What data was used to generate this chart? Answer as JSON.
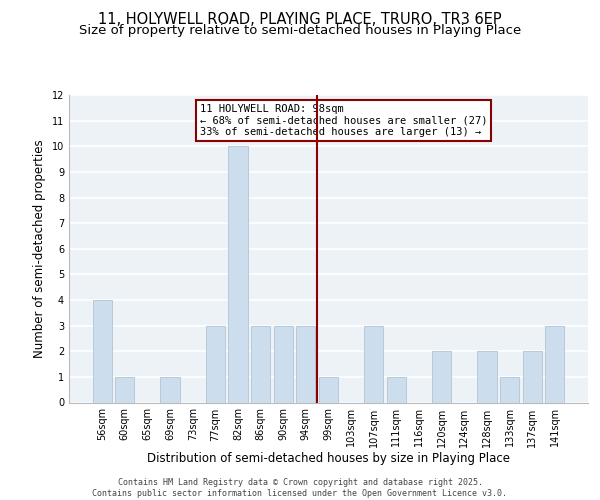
{
  "title1": "11, HOLYWELL ROAD, PLAYING PLACE, TRURO, TR3 6EP",
  "title2": "Size of property relative to semi-detached houses in Playing Place",
  "xlabel": "Distribution of semi-detached houses by size in Playing Place",
  "ylabel": "Number of semi-detached properties",
  "categories": [
    "56sqm",
    "60sqm",
    "65sqm",
    "69sqm",
    "73sqm",
    "77sqm",
    "82sqm",
    "86sqm",
    "90sqm",
    "94sqm",
    "99sqm",
    "103sqm",
    "107sqm",
    "111sqm",
    "116sqm",
    "120sqm",
    "124sqm",
    "128sqm",
    "133sqm",
    "137sqm",
    "141sqm"
  ],
  "values": [
    4,
    1,
    0,
    1,
    0,
    3,
    10,
    3,
    3,
    3,
    1,
    0,
    3,
    1,
    0,
    2,
    0,
    2,
    1,
    2,
    3
  ],
  "bar_color": "#ccdded",
  "bar_edge_color": "#aabccc",
  "subject_line_color": "#8b0000",
  "annotation_box_text": "11 HOLYWELL ROAD: 98sqm\n← 68% of semi-detached houses are smaller (27)\n33% of semi-detached houses are larger (13) →",
  "annotation_box_color": "#8b0000",
  "ylim": [
    0,
    12
  ],
  "yticks": [
    0,
    1,
    2,
    3,
    4,
    5,
    6,
    7,
    8,
    9,
    10,
    11,
    12
  ],
  "background_color": "#edf2f7",
  "footer_text": "Contains HM Land Registry data © Crown copyright and database right 2025.\nContains public sector information licensed under the Open Government Licence v3.0.",
  "grid_color": "#ffffff",
  "title_fontsize": 10.5,
  "subtitle_fontsize": 9.5,
  "axis_label_fontsize": 8.5,
  "tick_fontsize": 7,
  "footer_fontsize": 6,
  "annot_fontsize": 7.5
}
